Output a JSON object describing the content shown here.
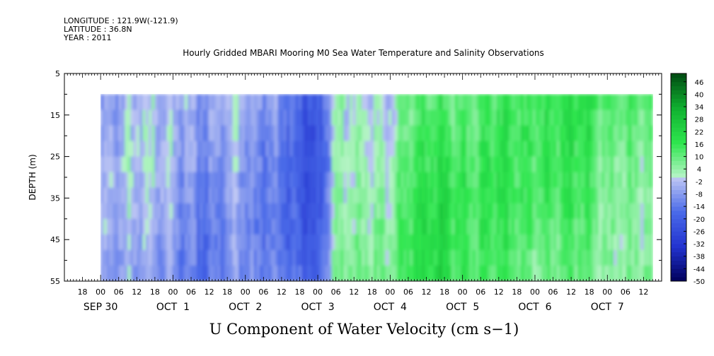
{
  "header": {
    "longitude": "LONGITUDE : 121.9W(-121.9)",
    "latitude": "LATITUDE : 36.8N",
    "year": "YEAR : 2011",
    "title": "Hourly Gridded MBARI Mooring M0 Sea Water Temperature and Salinity Observations"
  },
  "chart_data": {
    "type": "heatmap",
    "title": "Hourly Gridded MBARI Mooring M0 Sea Water Temperature and Salinity Observations",
    "variable": "U Component of Water Velocity (cm s-1)",
    "xlabel": "",
    "ylabel": "DEPTH (m)",
    "x_range": [
      "2011-09-29T12:00",
      "2011-10-07T18:00"
    ],
    "data_x_range": [
      "2011-09-30T00:00",
      "2011-10-07T15:00"
    ],
    "ylim": [
      5,
      55
    ],
    "y_inverted": true,
    "data_depth_range": [
      10,
      55
    ],
    "y_ticks": [
      5,
      15,
      25,
      35,
      45,
      55
    ],
    "x_hour_ticks": [
      "18",
      "00",
      "06",
      "12",
      "18",
      "00",
      "06",
      "12",
      "18",
      "00",
      "06",
      "12",
      "18",
      "00",
      "06",
      "12",
      "18",
      "00",
      "06",
      "12",
      "18",
      "00",
      "06",
      "12",
      "18",
      "00",
      "06",
      "12",
      "18",
      "00",
      "06",
      "12"
    ],
    "x_day_labels": [
      {
        "label": "SEP 30",
        "date": "2011-09-30"
      },
      {
        "label": "OCT  1",
        "date": "2011-10-01"
      },
      {
        "label": "OCT  2",
        "date": "2011-10-02"
      },
      {
        "label": "OCT  3",
        "date": "2011-10-03"
      },
      {
        "label": "OCT  4",
        "date": "2011-10-04"
      },
      {
        "label": "OCT  5",
        "date": "2011-10-05"
      },
      {
        "label": "OCT  6",
        "date": "2011-10-06"
      },
      {
        "label": "OCT  7",
        "date": "2011-10-07"
      }
    ],
    "colorbar": {
      "range": [
        -50,
        50
      ],
      "step": 2,
      "tick_labels": [
        "46",
        "40",
        "34",
        "28",
        "22",
        "16",
        "10",
        "4",
        "-2",
        "-8",
        "-14",
        "-20",
        "-26",
        "-32",
        "-38",
        "-44",
        "-50"
      ],
      "negative_colors": [
        "#00005a",
        "#2233d0",
        "#4a6ae8",
        "#c0c8f4"
      ],
      "positive_colors": [
        "#b8f4c8",
        "#2ee64e",
        "#10b030",
        "#004a12"
      ]
    },
    "time_profile": [
      {
        "date": "2011-09-30T00:00",
        "u": -11
      },
      {
        "date": "2011-09-30T09:00",
        "u": -6
      },
      {
        "date": "2011-09-30T18:00",
        "u": -5
      },
      {
        "date": "2011-10-01T03:00",
        "u": -9
      },
      {
        "date": "2011-10-01T12:00",
        "u": -13
      },
      {
        "date": "2011-10-01T21:00",
        "u": -3
      },
      {
        "date": "2011-10-02T03:00",
        "u": -10
      },
      {
        "date": "2011-10-02T09:00",
        "u": -9
      },
      {
        "date": "2011-10-02T18:00",
        "u": -17
      },
      {
        "date": "2011-10-03T00:00",
        "u": -22
      },
      {
        "date": "2011-10-03T06:00",
        "u": 6
      },
      {
        "date": "2011-10-03T15:00",
        "u": 5
      },
      {
        "date": "2011-10-04T00:00",
        "u": 3
      },
      {
        "date": "2011-10-04T06:00",
        "u": 13
      },
      {
        "date": "2011-10-04T15:00",
        "u": 17
      },
      {
        "date": "2011-10-05T03:00",
        "u": 10
      },
      {
        "date": "2011-10-05T12:00",
        "u": 14
      },
      {
        "date": "2011-10-05T21:00",
        "u": 10
      },
      {
        "date": "2011-10-06T06:00",
        "u": 12
      },
      {
        "date": "2011-10-06T15:00",
        "u": 16
      },
      {
        "date": "2011-10-07T00:00",
        "u": 8
      },
      {
        "date": "2011-10-07T12:00",
        "u": 10
      }
    ]
  },
  "x_axis_title": "U Component of Water Velocity (cm s−1)"
}
